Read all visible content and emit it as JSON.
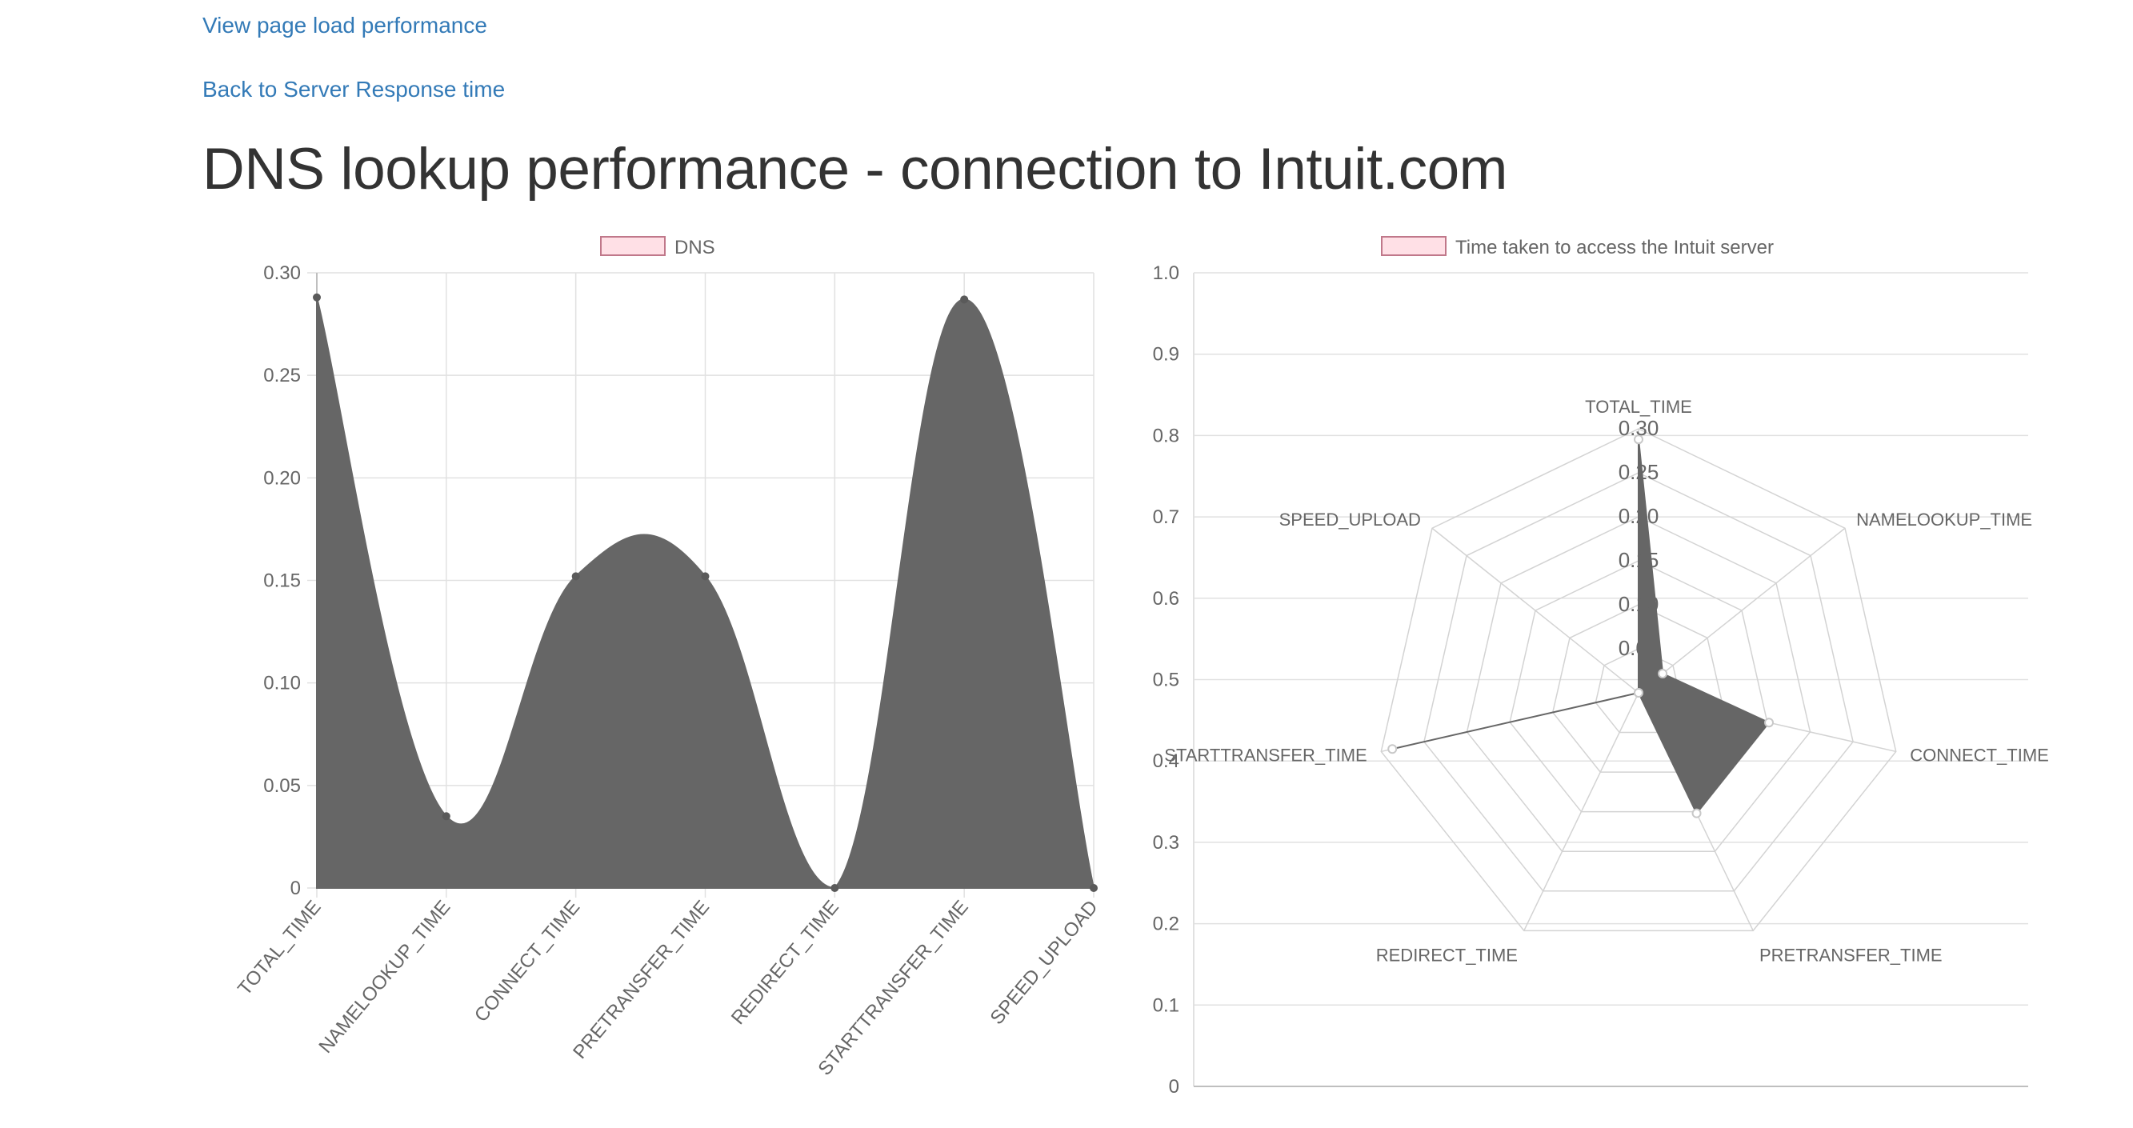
{
  "links": {
    "page_load": "View page load performance",
    "server_response": "Back to Server Response time"
  },
  "page_title": "DNS lookup performance - connection to Intuit.com",
  "colors": {
    "link": "#337ab7",
    "fill": "#666666",
    "legend_swatch_fill": "#ffe0e6",
    "legend_swatch_border": "#c0788a",
    "grid": "#e1e1e1",
    "radar_grid": "#d3d3d3"
  },
  "chart_data": [
    {
      "type": "area",
      "legend": "DNS",
      "categories": [
        "TOTAL_TIME",
        "NAMELOOKUP_TIME",
        "CONNECT_TIME",
        "PRETRANSFER_TIME",
        "REDIRECT_TIME",
        "STARTTRANSFER_TIME",
        "SPEED_UPLOAD"
      ],
      "values": [
        0.288,
        0.035,
        0.152,
        0.152,
        0,
        0.287,
        0
      ],
      "ylim": [
        0,
        0.3
      ],
      "yticks": [
        "0",
        "0.05",
        "0.10",
        "0.15",
        "0.20",
        "0.25",
        "0.30"
      ],
      "grid": true,
      "legend_position": "top"
    },
    {
      "type": "radar",
      "legend": "Time taken to access the Intuit server",
      "categories": [
        "TOTAL_TIME",
        "NAMELOOKUP_TIME",
        "CONNECT_TIME",
        "PRETRANSFER_TIME",
        "REDIRECT_TIME",
        "STARTTRANSFER_TIME",
        "SPEED_UPLOAD"
      ],
      "values": [
        0.288,
        0.035,
        0.152,
        0.152,
        0,
        0.287,
        0
      ],
      "rlim": [
        0,
        0.3
      ],
      "rticks": [
        "0.30",
        "0.25",
        "0.20",
        "0.15",
        "0.10",
        "0.05"
      ],
      "background_yticks": [
        "0",
        "0.1",
        "0.2",
        "0.3",
        "0.4",
        "0.5",
        "0.6",
        "0.7",
        "0.8",
        "0.9",
        "1.0"
      ],
      "legend_position": "top"
    }
  ]
}
